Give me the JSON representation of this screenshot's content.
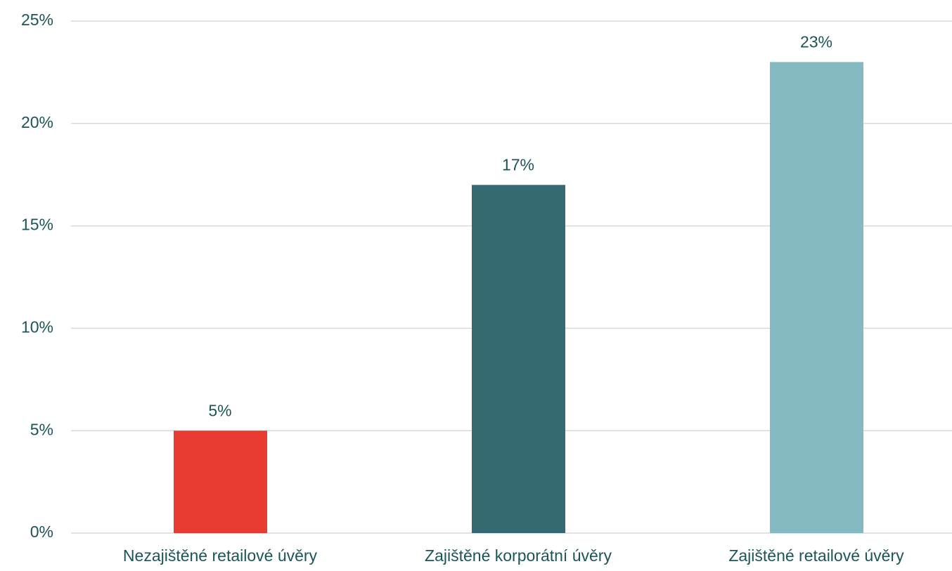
{
  "chart_data": {
    "type": "bar",
    "categories": [
      "Nezajištěné retailové úvěry",
      "Zajištěné korporátní úvěry",
      "Zajištěné retailové úvěry"
    ],
    "values": [
      5,
      17,
      23
    ],
    "value_labels": [
      "5%",
      "17%",
      "23%"
    ],
    "colors": [
      "#e83c32",
      "#356a73",
      "#83b9c1"
    ],
    "ylim": [
      0,
      25
    ],
    "yticks": [
      {
        "value": 0,
        "label": "0%"
      },
      {
        "value": 5,
        "label": "5%"
      },
      {
        "value": 10,
        "label": "10%"
      },
      {
        "value": 15,
        "label": "15%"
      },
      {
        "value": 20,
        "label": "20%"
      },
      {
        "value": 25,
        "label": "25%"
      }
    ],
    "grid": true
  }
}
